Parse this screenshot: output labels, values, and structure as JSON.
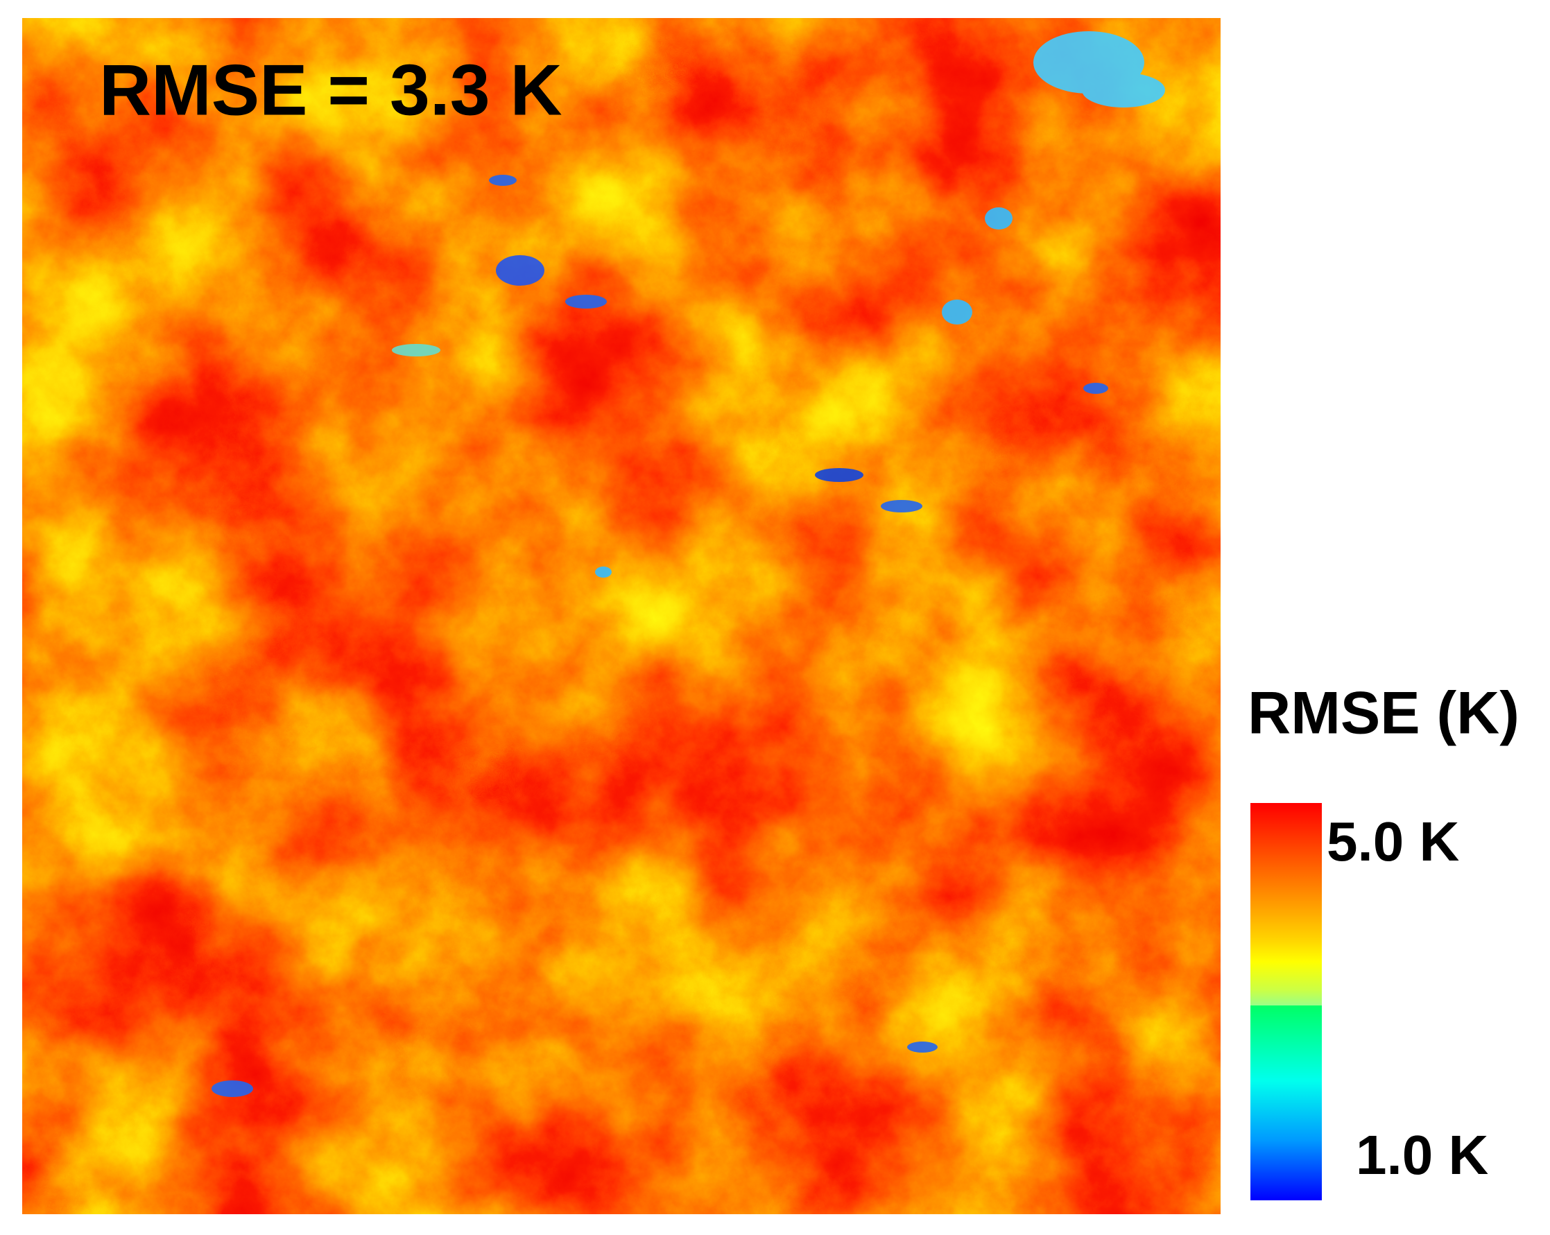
{
  "annotation": "RMSE = 3.3 K",
  "colorbar": {
    "title": "RMSE (K)",
    "max_label": "5.0 K",
    "min_label": "1.0 K"
  }
}
